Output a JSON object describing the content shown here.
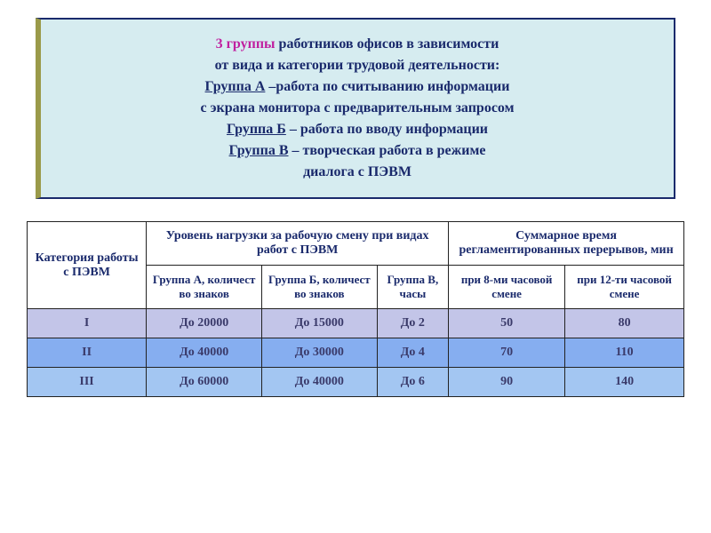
{
  "infobox": {
    "line1a": "3 группы",
    "line1b": " работников офисов в зависимости",
    "line2": "от вида и категории трудовой деятельности:",
    "gA_label": "Группа А",
    "gA_text": " –работа по считыванию информации",
    "line4": "с экрана монитора с предварительным запросом",
    "gB_label": "Группа Б",
    "gB_text": " – работа по вводу информации",
    "gV_label": "Группа В",
    "gV_text": " – творческая работа в режиме",
    "line7": "диалога с ПЭВМ"
  },
  "table": {
    "header": {
      "cat": "Категория работы с ПЭВМ",
      "load": "Уровень нагрузки за рабочую смену при видах работ с ПЭВМ",
      "breaks": "Суммарное время регламентированных перерывов, мин",
      "gA": "Группа А, количест во знаков",
      "gB": "Группа Б, количест во знаков",
      "gV": "Группа В, часы",
      "h8": "при 8-ми часовой смене",
      "h12": "при 12-ти часовой смене"
    },
    "rows": [
      {
        "cat": "I",
        "a": "До 20000",
        "b": "До 15000",
        "v": "До 2",
        "h8": "50",
        "h12": "80"
      },
      {
        "cat": "II",
        "a": "До 40000",
        "b": "До 30000",
        "v": "До 4",
        "h8": "70",
        "h12": "110"
      },
      {
        "cat": "III",
        "a": "До 60000",
        "b": "До 40000",
        "v": "До 6",
        "h8": "90",
        "h12": "140"
      }
    ],
    "colors": {
      "row1_bg": "#c3c5e8",
      "row2_bg": "#86aef0",
      "row3_bg": "#a3c6f2",
      "header_text": "#1a2a6c",
      "cell_text": "#3a3a6a",
      "border": "#222222",
      "infobox_bg": "#d6ecf0",
      "infobox_border": "#1a2a6c",
      "accent_border": "#9a9a4a",
      "magenta": "#c020a0"
    }
  }
}
